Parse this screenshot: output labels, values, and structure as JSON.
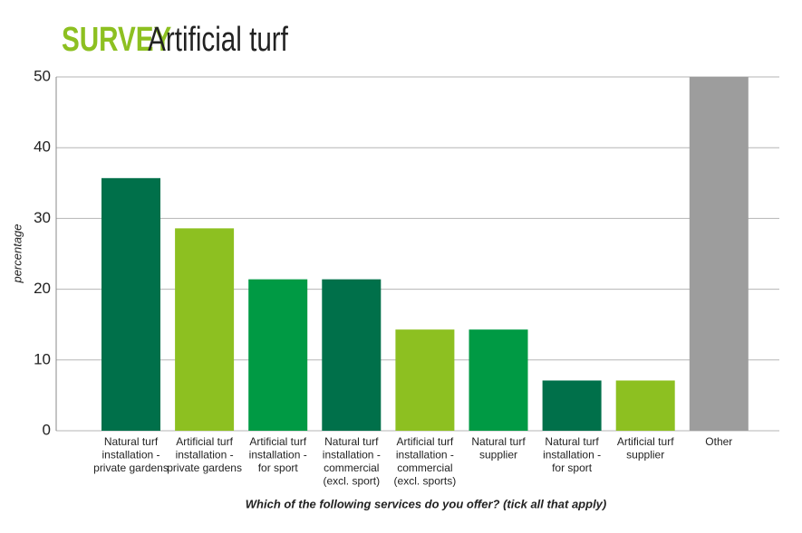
{
  "chart_data": {
    "type": "bar",
    "title_tag": "SURVEY",
    "title": "Artificial turf",
    "x_label": "Which of the following services do you offer? (tick all that apply)",
    "y_label": "percentage",
    "categories": [
      "Natural turf\ninstallation -\nprivate gardens",
      "Artificial turf\ninstallation -\nprivate gardens",
      "Artificial turf\ninstallation -\nfor sport",
      "Natural turf\ninstallation -\ncommercial\n(excl. sport)",
      "Artificial turf\ninstallation -\ncommercial\n(excl. sports)",
      "Natural turf\nsupplier",
      "Natural turf\ninstallation -\nfor sport",
      "Artificial turf\nsupplier",
      "Other"
    ],
    "values": [
      35.7,
      28.6,
      21.4,
      21.4,
      14.3,
      14.3,
      7.1,
      7.1,
      50
    ],
    "colors": [
      "#00704a",
      "#8dc021",
      "#009a44",
      "#00704a",
      "#8dc021",
      "#009a44",
      "#00704a",
      "#8dc021",
      "#9d9d9d"
    ],
    "title_tag_color": "#8dc021",
    "ylim": [
      0,
      50
    ],
    "yticks": [
      0,
      10,
      20,
      30,
      40,
      50
    ],
    "grid": true
  }
}
